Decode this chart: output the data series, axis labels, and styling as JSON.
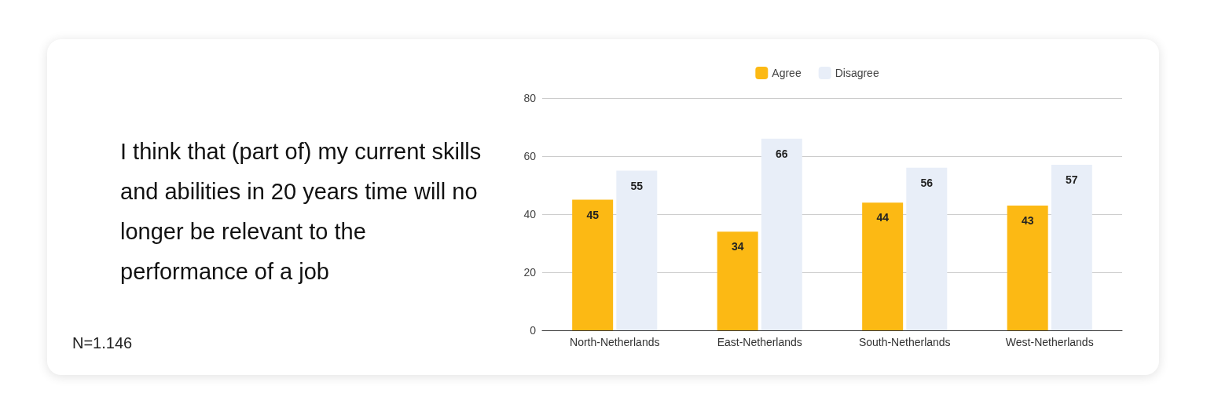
{
  "chart_data": {
    "type": "bar",
    "title": "I think that (part of) my current skills and abilities in 20 years time will no longer be relevant to the performance of a job",
    "annotations": [
      "N=1.146"
    ],
    "categories": [
      "North-Netherlands",
      "East-Netherlands",
      "South-Netherlands",
      "West-Netherlands"
    ],
    "series": [
      {
        "name": "Agree",
        "color": "#fcb914",
        "values": [
          45,
          34,
          44,
          43
        ]
      },
      {
        "name": "Disagree",
        "color": "#e8eef8",
        "values": [
          55,
          66,
          56,
          57
        ]
      }
    ],
    "ylim": [
      0,
      80
    ],
    "yticks": [
      0,
      20,
      40,
      60,
      80
    ],
    "grid": "y",
    "legend": "top",
    "data_labels": true
  }
}
